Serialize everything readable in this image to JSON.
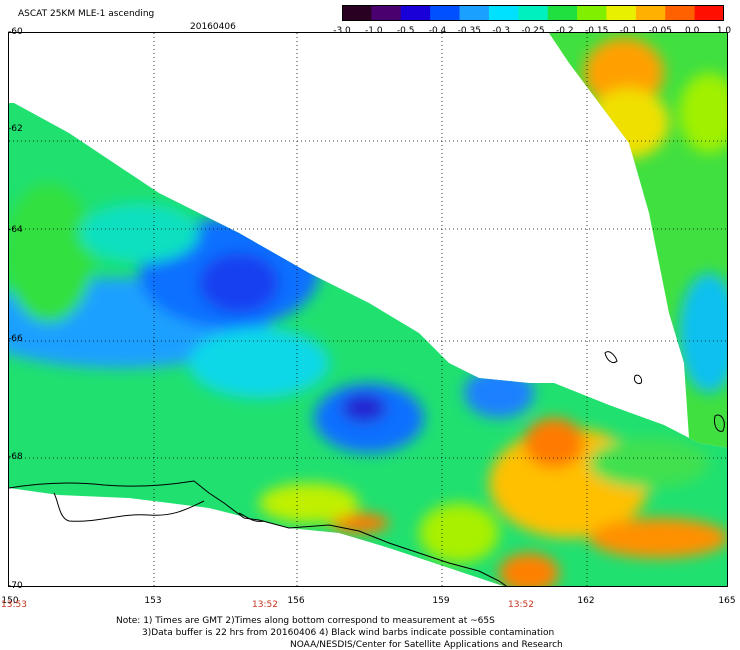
{
  "header": {
    "title": "ASCAT 25KM MLE-1 ascending",
    "date": "20160406"
  },
  "colorbar": {
    "labels": [
      "-3.0",
      "-1.0",
      "-0.5",
      "-0.4",
      "-0.35",
      "-0.3",
      "-0.25",
      "-0.2",
      "-0.15",
      "-0.1",
      "-0.05",
      "0.0",
      "1.0"
    ],
    "colors": [
      "#2a0022",
      "#4b0070",
      "#1a00d8",
      "#0050ff",
      "#1aa0ff",
      "#00e0ff",
      "#00f0c0",
      "#20e040",
      "#80f000",
      "#e8f000",
      "#ffb000",
      "#ff6000",
      "#ff1000"
    ]
  },
  "axes": {
    "y_ticks": [
      "-60",
      "-62",
      "-64",
      "-66",
      "-68",
      "-70"
    ],
    "x_ticks": [
      "150",
      "153",
      "156",
      "159",
      "162",
      "165"
    ],
    "times": [
      "13:53",
      "13:52",
      "13:52"
    ]
  },
  "notes": {
    "line1": "Note: 1) Times are GMT 2)Times along bottom correspond to measurement at ~65S",
    "line2": "3)Data buffer is 22 hrs from 20160406 4) Black wind barbs indicate possible contamination",
    "line3": "NOAA/NESDIS/Center for Satellite Applications and Research"
  }
}
